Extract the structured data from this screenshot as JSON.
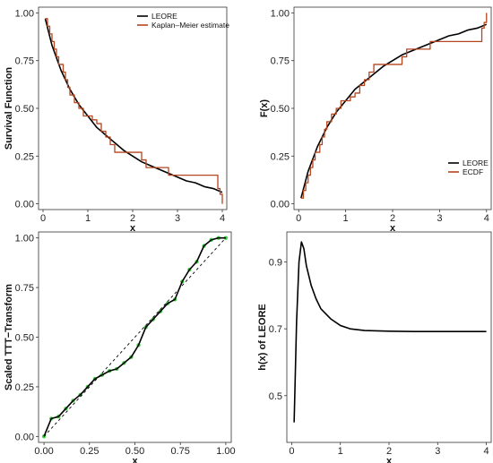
{
  "chart_data": [
    {
      "id": "survival",
      "type": "line",
      "xlabel": "x",
      "ylabel": "Survival Function",
      "xlim": [
        -0.1,
        4.1
      ],
      "ylim": [
        -0.03,
        1.03
      ],
      "xticks": [
        "0",
        "1",
        "2",
        "3",
        "4"
      ],
      "yticks": [
        "0.00",
        "0.25",
        "0.50",
        "0.75",
        "1.00"
      ],
      "legend": {
        "position": "top-right",
        "entries": [
          "LEORE",
          "Kaplan–Meier estimate"
        ]
      },
      "series": [
        {
          "name": "LEORE",
          "color": "#000000",
          "style": "line",
          "x": [
            0.05,
            0.2,
            0.4,
            0.6,
            0.8,
            1.0,
            1.2,
            1.4,
            1.6,
            1.8,
            2.0,
            2.2,
            2.4,
            2.6,
            2.8,
            3.0,
            3.2,
            3.4,
            3.6,
            3.8,
            4.0
          ],
          "y": [
            0.97,
            0.83,
            0.7,
            0.6,
            0.52,
            0.46,
            0.4,
            0.36,
            0.32,
            0.28,
            0.25,
            0.22,
            0.2,
            0.18,
            0.16,
            0.14,
            0.12,
            0.11,
            0.09,
            0.08,
            0.06
          ]
        },
        {
          "name": "Kaplan–Meier estimate",
          "color": "#b5451f",
          "style": "step",
          "x": [
            0.05,
            0.1,
            0.15,
            0.2,
            0.25,
            0.3,
            0.35,
            0.45,
            0.5,
            0.55,
            0.6,
            0.7,
            0.8,
            0.9,
            1.0,
            1.1,
            1.2,
            1.3,
            1.4,
            1.5,
            1.6,
            2.2,
            2.3,
            2.8,
            3.9,
            3.95,
            4.0
          ],
          "y": [
            0.97,
            0.93,
            0.89,
            0.85,
            0.81,
            0.77,
            0.73,
            0.69,
            0.65,
            0.61,
            0.57,
            0.53,
            0.5,
            0.46,
            0.46,
            0.44,
            0.42,
            0.38,
            0.35,
            0.31,
            0.27,
            0.23,
            0.19,
            0.15,
            0.08,
            0.05,
            0.0
          ]
        }
      ]
    },
    {
      "id": "cdf",
      "type": "line",
      "xlabel": "x",
      "ylabel": "F(x)",
      "xlim": [
        -0.1,
        4.1
      ],
      "ylim": [
        -0.03,
        1.03
      ],
      "xticks": [
        "0",
        "1",
        "2",
        "3",
        "4"
      ],
      "yticks": [
        "0.00",
        "0.25",
        "0.50",
        "0.75",
        "1.00"
      ],
      "legend": {
        "position": "bottom-right",
        "entries": [
          "LEORE",
          "ECDF"
        ]
      },
      "series": [
        {
          "name": "LEORE",
          "color": "#000000",
          "style": "line",
          "x": [
            0.05,
            0.2,
            0.4,
            0.6,
            0.8,
            1.0,
            1.2,
            1.4,
            1.6,
            1.8,
            2.0,
            2.2,
            2.4,
            2.6,
            2.8,
            3.0,
            3.2,
            3.4,
            3.6,
            3.8,
            4.0
          ],
          "y": [
            0.03,
            0.17,
            0.3,
            0.4,
            0.48,
            0.54,
            0.6,
            0.64,
            0.68,
            0.72,
            0.75,
            0.78,
            0.8,
            0.82,
            0.84,
            0.86,
            0.88,
            0.89,
            0.91,
            0.92,
            0.94
          ]
        },
        {
          "name": "ECDF",
          "color": "#b5451f",
          "style": "step",
          "x": [
            0.05,
            0.1,
            0.15,
            0.2,
            0.25,
            0.3,
            0.35,
            0.45,
            0.5,
            0.55,
            0.6,
            0.7,
            0.8,
            0.9,
            1.0,
            1.1,
            1.2,
            1.3,
            1.4,
            1.5,
            1.6,
            2.2,
            2.3,
            2.8,
            3.9,
            3.95,
            4.0
          ],
          "y": [
            0.03,
            0.07,
            0.11,
            0.15,
            0.19,
            0.23,
            0.27,
            0.31,
            0.35,
            0.39,
            0.43,
            0.47,
            0.5,
            0.54,
            0.54,
            0.56,
            0.58,
            0.62,
            0.65,
            0.69,
            0.73,
            0.77,
            0.81,
            0.85,
            0.92,
            0.95,
            1.0
          ]
        }
      ]
    },
    {
      "id": "ttt",
      "type": "line",
      "xlabel": "x",
      "ylabel": "Scaled TTT−Transform",
      "xlim": [
        -0.03,
        1.03
      ],
      "ylim": [
        -0.03,
        1.03
      ],
      "xticks": [
        "0.00",
        "0.25",
        "0.50",
        "0.75",
        "1.00"
      ],
      "yticks": [
        "0.00",
        "0.25",
        "0.50",
        "0.75",
        "1.00"
      ],
      "series": [
        {
          "name": "",
          "color": "#22cc22",
          "style": "points",
          "x": [
            0.0,
            0.04,
            0.08,
            0.12,
            0.16,
            0.2,
            0.24,
            0.28,
            0.32,
            0.36,
            0.4,
            0.44,
            0.48,
            0.52,
            0.56,
            0.6,
            0.64,
            0.68,
            0.72,
            0.76,
            0.8,
            0.84,
            0.88,
            0.92,
            0.96,
            1.0
          ],
          "y": [
            0.0,
            0.09,
            0.1,
            0.14,
            0.18,
            0.21,
            0.25,
            0.29,
            0.31,
            0.33,
            0.34,
            0.37,
            0.4,
            0.46,
            0.55,
            0.59,
            0.63,
            0.67,
            0.69,
            0.78,
            0.84,
            0.88,
            0.96,
            0.99,
            1.0,
            1.0
          ]
        },
        {
          "name": "",
          "color": "#000000",
          "style": "line",
          "x": [
            0.0,
            0.04,
            0.08,
            0.12,
            0.16,
            0.2,
            0.24,
            0.28,
            0.32,
            0.36,
            0.4,
            0.44,
            0.48,
            0.52,
            0.56,
            0.6,
            0.64,
            0.68,
            0.72,
            0.76,
            0.8,
            0.84,
            0.88,
            0.92,
            0.96,
            1.0
          ],
          "y": [
            0.0,
            0.09,
            0.1,
            0.14,
            0.18,
            0.21,
            0.25,
            0.29,
            0.31,
            0.33,
            0.34,
            0.37,
            0.4,
            0.46,
            0.55,
            0.59,
            0.63,
            0.67,
            0.69,
            0.78,
            0.84,
            0.88,
            0.96,
            0.99,
            1.0,
            1.0
          ]
        },
        {
          "name": "",
          "color": "#000000",
          "style": "dashed",
          "x": [
            0.0,
            1.0
          ],
          "y": [
            0.0,
            1.0
          ]
        }
      ]
    },
    {
      "id": "hazard",
      "type": "line",
      "xlabel": "x",
      "ylabel": "h(x) of LEORE",
      "xlim": [
        -0.1,
        4.1
      ],
      "ylim": [
        0.36,
        0.99
      ],
      "xticks": [
        "0",
        "1",
        "2",
        "3",
        "4"
      ],
      "yticks": [
        "0.5",
        "0.7",
        "0.9"
      ],
      "series": [
        {
          "name": "",
          "color": "#000000",
          "style": "line",
          "x": [
            0.05,
            0.1,
            0.15,
            0.2,
            0.25,
            0.3,
            0.4,
            0.5,
            0.6,
            0.8,
            1.0,
            1.2,
            1.5,
            2.0,
            2.5,
            3.0,
            3.5,
            4.0
          ],
          "y": [
            0.42,
            0.72,
            0.9,
            0.96,
            0.94,
            0.89,
            0.83,
            0.79,
            0.76,
            0.73,
            0.71,
            0.7,
            0.695,
            0.693,
            0.692,
            0.692,
            0.692,
            0.692
          ]
        }
      ]
    }
  ]
}
